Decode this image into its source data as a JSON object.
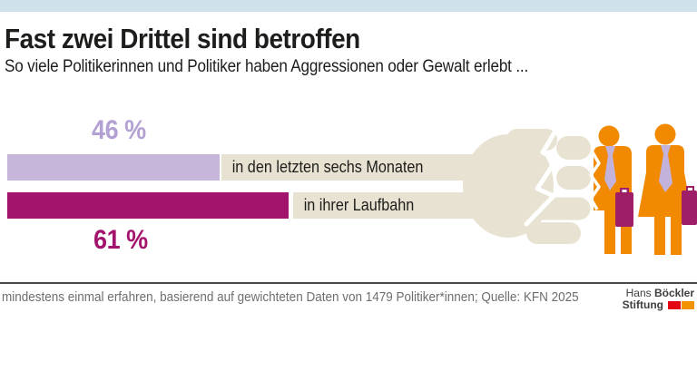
{
  "colors": {
    "strip": "#cfe2ec",
    "beige": "#e7e2d1",
    "orange": "#f18a00",
    "tie": "#c3b2d9",
    "case": "#9f1e68",
    "ink": "#1d1d1b",
    "footer_text": "#6f6e6e",
    "line": "#4a4949",
    "logo_text": "#3f3e3e",
    "logo_red": "#e30613",
    "logo_orange": "#f39200"
  },
  "header": {
    "title": "Fast zwei Drittel sind betroffen",
    "subtitle": "So viele Politikerinnen und Politiker haben Aggressionen oder Gewalt erlebt ..."
  },
  "chart_data": {
    "type": "bar",
    "orientation": "horizontal",
    "title": "Fast zwei Drittel sind betroffen",
    "subtitle": "So viele Politikerinnen und Politiker haben Aggressionen oder Gewalt erlebt ...",
    "categories": [
      "in den letzten sechs Monaten",
      "in ihrer Laufbahn"
    ],
    "values": [
      46,
      61
    ],
    "unit": "%",
    "value_labels": [
      "46 %",
      "61 %"
    ],
    "bar_colors": [
      "#c6b6da",
      "#a3146c"
    ],
    "value_label_colors": [
      "#b3a1d3",
      "#a3146c"
    ],
    "label_box_color": "#e7e2d1",
    "xlim": [
      0,
      100
    ],
    "grid": false,
    "legend": "none"
  },
  "illustration": {
    "description": "beige fist punching two orange politician figures with ties and briefcases",
    "fist_color": "#e7e2d1",
    "figure_color": "#f18a00",
    "tie_color": "#c3b2d9",
    "briefcase_color": "#9f1e68"
  },
  "footer": {
    "note": "mindestens einmal erfahren, basierend auf gewichteten Daten von 1479 Politiker*innen; Quelle: KFN 2025",
    "logo": {
      "name_regular": "Hans",
      "name_bold": "Böckler",
      "line2": "Stiftung"
    }
  }
}
